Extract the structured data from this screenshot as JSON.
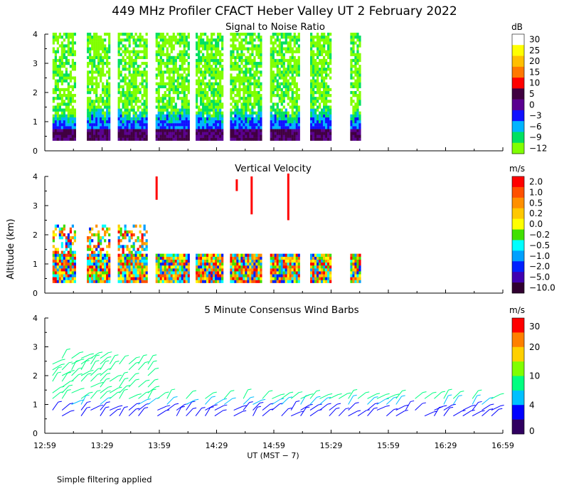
{
  "title": "449 MHz Profiler CFACT Heber Valley UT  2 February 2022",
  "y_axis_label": "Altitude (km)",
  "x_axis_label": "UT  (MST − 7)",
  "footnote": "Simple filtering applied",
  "x_ticks": [
    "12:59",
    "13:29",
    "13:59",
    "14:29",
    "14:59",
    "15:29",
    "15:59",
    "16:29",
    "16:59"
  ],
  "y_ticks": [
    "0",
    "1",
    "2",
    "3",
    "4"
  ],
  "chart_data": [
    {
      "type": "heatmap",
      "title": "Signal to Noise Ratio",
      "colorbar_unit": "dB",
      "colorbar_labels": [
        "30",
        "25",
        "20",
        "15",
        "10",
        "5",
        "0",
        "−3",
        "−6",
        "−9",
        "−12"
      ],
      "colorbar_colors": [
        "#ffffff",
        "#ffff00",
        "#ffbf00",
        "#ff7800",
        "#ff0000",
        "#400040",
        "#5a0090",
        "#1010ff",
        "#00b4ff",
        "#00e060",
        "#80ff00"
      ],
      "x_range_hours_ut": [
        12.983,
        16.983
      ],
      "y_range_km": [
        0,
        4
      ],
      "time_blocks_ut": [
        [
          13.05,
          13.25
        ],
        [
          13.35,
          13.55
        ],
        [
          13.62,
          13.87
        ],
        [
          13.95,
          14.23
        ],
        [
          14.3,
          14.53
        ],
        [
          14.6,
          14.87
        ],
        [
          14.95,
          15.2
        ],
        [
          15.3,
          15.48
        ],
        [
          15.65,
          15.73
        ]
      ],
      "data_bottom_km": 0.35,
      "data_top_km": 4.0
    },
    {
      "type": "heatmap",
      "title": "Vertical Velocity",
      "colorbar_unit": "m/s",
      "colorbar_labels": [
        "2.0",
        "1.0",
        "0.5",
        "0.2",
        "0.0",
        "−0.2",
        "−0.5",
        "−1.0",
        "−2.0",
        "−5.0",
        "−10.0"
      ],
      "colorbar_colors": [
        "#ff0000",
        "#ff5000",
        "#ff9000",
        "#ffc800",
        "#ffff00",
        "#40e000",
        "#00ffff",
        "#00a0ff",
        "#0020ff",
        "#4000b0",
        "#300030"
      ],
      "x_range_hours_ut": [
        12.983,
        16.983
      ],
      "y_range_km": [
        0,
        4
      ],
      "main_layer_top_km": 1.3
    },
    {
      "type": "scatter",
      "title": "5 Minute Consensus Wind Barbs",
      "colorbar_unit": "m/s",
      "colorbar_labels": [
        "30",
        "20",
        "10",
        "4",
        "0"
      ],
      "colorbar_colors": [
        "#ff0000",
        "#ff8000",
        "#ffd000",
        "#80ff00",
        "#00ff80",
        "#00c0ff",
        "#0000ff",
        "#300060"
      ],
      "x_range_hours_ut": [
        12.983,
        16.983
      ],
      "y_range_km": [
        0,
        4
      ],
      "barb_interval_minutes": 5
    }
  ]
}
